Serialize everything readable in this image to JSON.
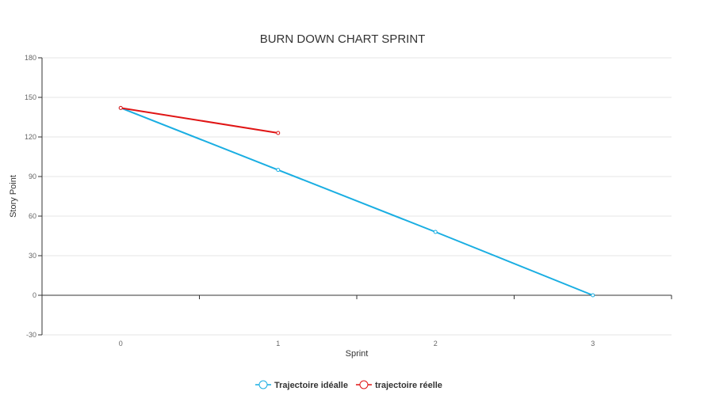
{
  "chart_data": {
    "type": "line",
    "title": "BURN DOWN CHART SPRINT",
    "xlabel": "Sprint",
    "ylabel": "Story Point",
    "x": [
      0,
      1,
      2,
      3
    ],
    "xlim": [
      -0.5,
      3.5
    ],
    "ylim": [
      -30,
      180
    ],
    "yticks": [
      -30,
      0,
      30,
      60,
      90,
      120,
      150,
      180
    ],
    "grid": true,
    "legend": "bottom",
    "series": [
      {
        "name": "Trajectoire idéalle",
        "color": "#1aaee2",
        "x": [
          0,
          1,
          2,
          3
        ],
        "values": [
          142,
          95,
          48,
          0
        ]
      },
      {
        "name": "trajectoire réelle",
        "color": "#e01515",
        "x": [
          0,
          1
        ],
        "values": [
          142,
          123
        ]
      }
    ]
  }
}
